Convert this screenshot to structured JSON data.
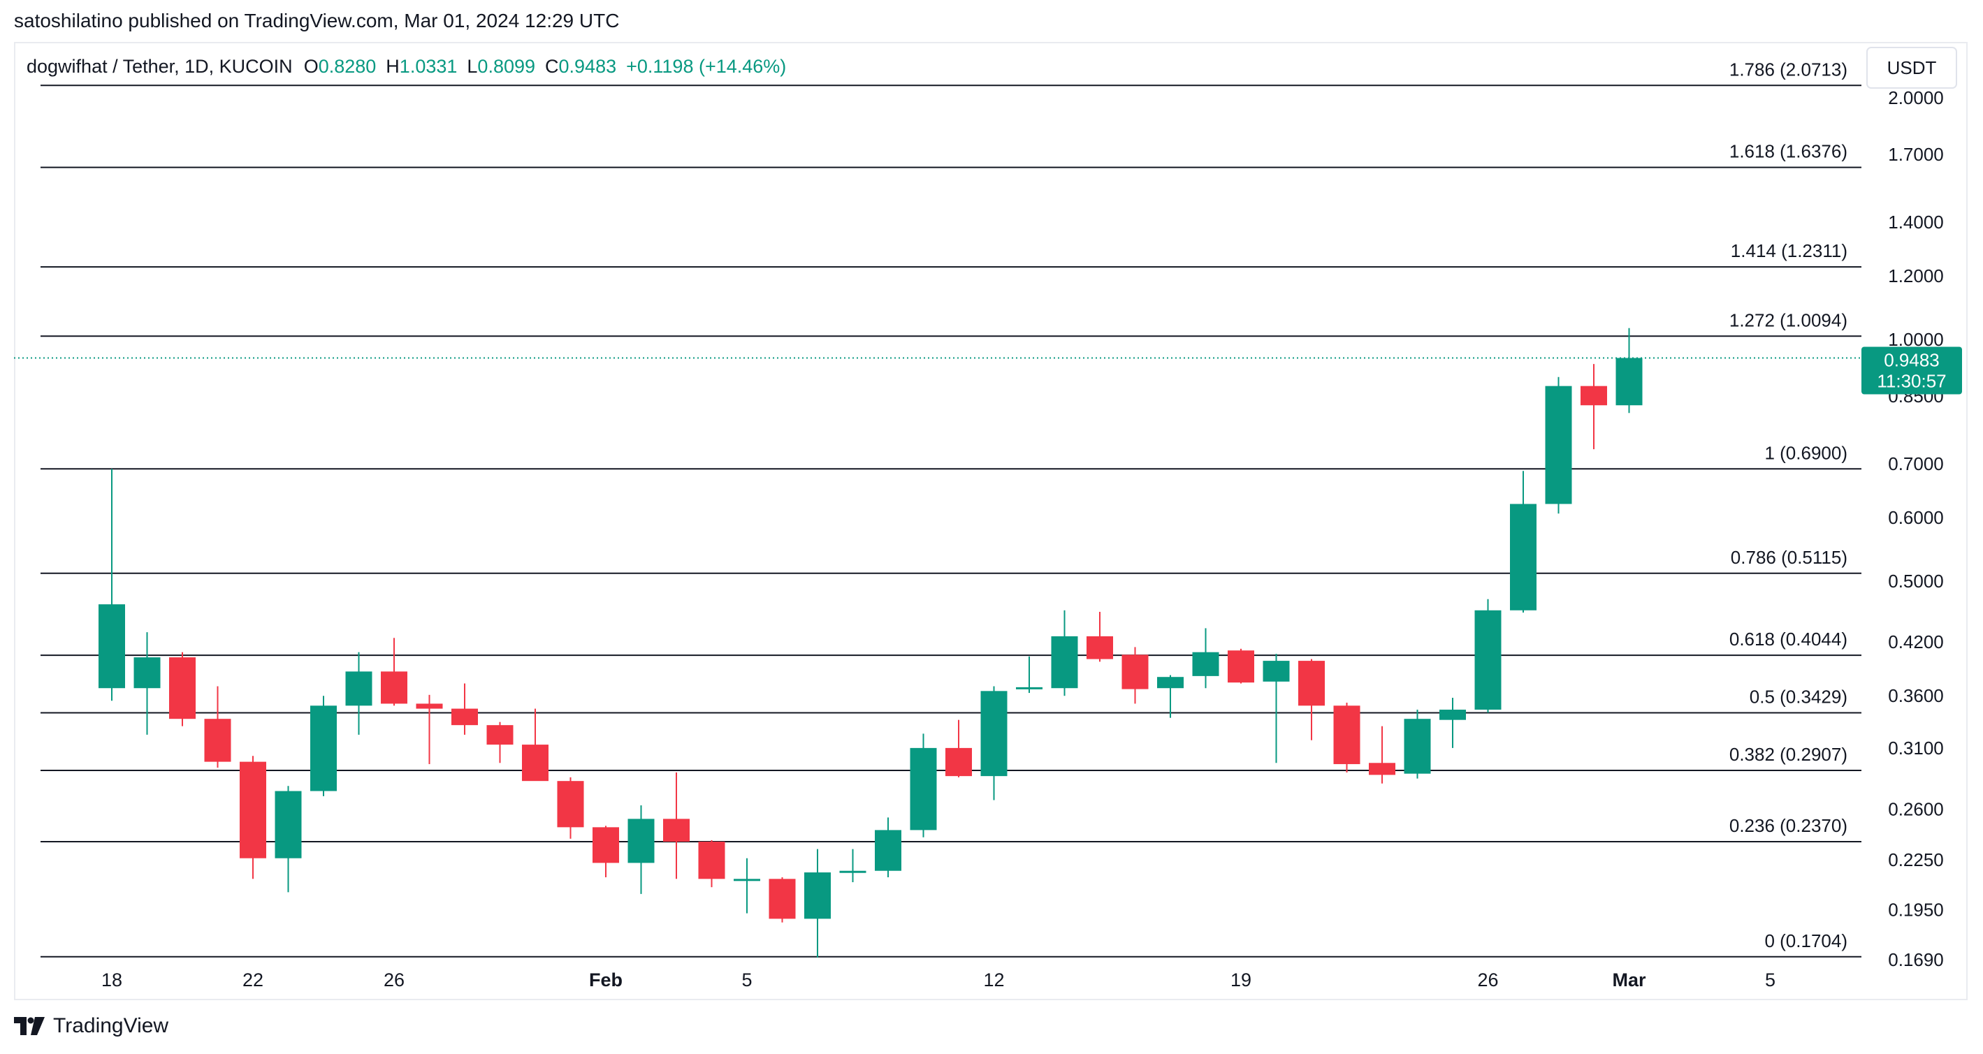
{
  "publisher_line": "satoshilatino published on TradingView.com, Mar 01, 2024 12:29 UTC",
  "footer_brand": "TradingView",
  "colors": {
    "up": "#089981",
    "down": "#f23645",
    "line": "#131722",
    "text": "#131722",
    "axis_text": "#131722",
    "grid_border": "#e0e3eb"
  },
  "chart_data": {
    "type": "candlestick",
    "title": "dogwifhat / Tether, 1D, KUCOIN",
    "ohlc_header": {
      "o_label": "O",
      "o_value": "0.8280",
      "h_label": "H",
      "h_value": "1.0331",
      "l_label": "L",
      "l_value": "0.8099",
      "c_label": "C",
      "c_value": "0.9483",
      "change": "+0.1198 (+14.46%)"
    },
    "currency": "USDT",
    "scale": "log",
    "y_range": [
      0.162,
      2.3
    ],
    "y_ticks": [
      {
        "label": "2.0000",
        "value": 2.0
      },
      {
        "label": "1.7000",
        "value": 1.7
      },
      {
        "label": "1.4000",
        "value": 1.4
      },
      {
        "label": "1.2000",
        "value": 1.2
      },
      {
        "label": "1.0000",
        "value": 1.0
      },
      {
        "label": "0.8500",
        "value": 0.85
      },
      {
        "label": "0.7000",
        "value": 0.7
      },
      {
        "label": "0.6000",
        "value": 0.6
      },
      {
        "label": "0.5000",
        "value": 0.5
      },
      {
        "label": "0.4200",
        "value": 0.42
      },
      {
        "label": "0.3600",
        "value": 0.36
      },
      {
        "label": "0.3100",
        "value": 0.31
      },
      {
        "label": "0.2600",
        "value": 0.26
      },
      {
        "label": "0.2250",
        "value": 0.225
      },
      {
        "label": "0.1950",
        "value": 0.195
      },
      {
        "label": "0.1690",
        "value": 0.169
      }
    ],
    "x_ticks": [
      {
        "label": "18",
        "index": 0,
        "bold": false
      },
      {
        "label": "22",
        "index": 4,
        "bold": false
      },
      {
        "label": "26",
        "index": 8,
        "bold": false
      },
      {
        "label": "Feb",
        "index": 14,
        "bold": true
      },
      {
        "label": "5",
        "index": 18,
        "bold": false
      },
      {
        "label": "12",
        "index": 25,
        "bold": false
      },
      {
        "label": "19",
        "index": 32,
        "bold": false
      },
      {
        "label": "26",
        "index": 39,
        "bold": false
      },
      {
        "label": "Mar",
        "index": 43,
        "bold": true
      },
      {
        "label": "5",
        "index": 47,
        "bold": false
      }
    ],
    "last_price": {
      "price": "0.9483",
      "countdown": "11:30:57",
      "value": 0.9483
    },
    "fib_levels": [
      {
        "label": "1.786 (2.0713)",
        "value": 2.0713
      },
      {
        "label": "1.618 (1.6376)",
        "value": 1.6376
      },
      {
        "label": "1.414 (1.2311)",
        "value": 1.2311
      },
      {
        "label": "1.272 (1.0094)",
        "value": 1.0094
      },
      {
        "label": "1 (0.6900)",
        "value": 0.69
      },
      {
        "label": "0.786 (0.5115)",
        "value": 0.5115
      },
      {
        "label": "0.618 (0.4044)",
        "value": 0.4044
      },
      {
        "label": "0.5 (0.3429)",
        "value": 0.3429
      },
      {
        "label": "0.382 (0.2907)",
        "value": 0.2907
      },
      {
        "label": "0.236 (0.2370)",
        "value": 0.237
      },
      {
        "label": "0 (0.1704)",
        "value": 0.1704
      }
    ],
    "candles": [
      {
        "date": "Jan 18",
        "o": 0.368,
        "h": 0.69,
        "l": 0.355,
        "c": 0.468
      },
      {
        "date": "Jan 19",
        "o": 0.368,
        "h": 0.432,
        "l": 0.322,
        "c": 0.402
      },
      {
        "date": "Jan 20",
        "o": 0.402,
        "h": 0.408,
        "l": 0.33,
        "c": 0.337
      },
      {
        "date": "Jan 21",
        "o": 0.337,
        "h": 0.37,
        "l": 0.293,
        "c": 0.298
      },
      {
        "date": "Jan 22",
        "o": 0.298,
        "h": 0.303,
        "l": 0.213,
        "c": 0.226
      },
      {
        "date": "Jan 23",
        "o": 0.226,
        "h": 0.278,
        "l": 0.205,
        "c": 0.274
      },
      {
        "date": "Jan 24",
        "o": 0.274,
        "h": 0.36,
        "l": 0.27,
        "c": 0.35
      },
      {
        "date": "Jan 25",
        "o": 0.35,
        "h": 0.408,
        "l": 0.322,
        "c": 0.386
      },
      {
        "date": "Jan 26",
        "o": 0.386,
        "h": 0.425,
        "l": 0.35,
        "c": 0.352
      },
      {
        "date": "Jan 27",
        "o": 0.352,
        "h": 0.361,
        "l": 0.296,
        "c": 0.347
      },
      {
        "date": "Jan 28",
        "o": 0.347,
        "h": 0.373,
        "l": 0.322,
        "c": 0.331
      },
      {
        "date": "Jan 29",
        "o": 0.331,
        "h": 0.334,
        "l": 0.297,
        "c": 0.313
      },
      {
        "date": "Jan 30",
        "o": 0.313,
        "h": 0.347,
        "l": 0.286,
        "c": 0.282
      },
      {
        "date": "Jan 31",
        "o": 0.282,
        "h": 0.285,
        "l": 0.239,
        "c": 0.247
      },
      {
        "date": "Feb 1",
        "o": 0.247,
        "h": 0.248,
        "l": 0.214,
        "c": 0.223
      },
      {
        "date": "Feb 2",
        "o": 0.223,
        "h": 0.263,
        "l": 0.204,
        "c": 0.253
      },
      {
        "date": "Feb 3",
        "o": 0.253,
        "h": 0.289,
        "l": 0.213,
        "c": 0.237
      },
      {
        "date": "Feb 4",
        "o": 0.237,
        "h": 0.238,
        "l": 0.208,
        "c": 0.213
      },
      {
        "date": "Feb 5",
        "o": 0.212,
        "h": 0.226,
        "l": 0.193,
        "c": 0.213
      },
      {
        "date": "Feb 6",
        "o": 0.213,
        "h": 0.214,
        "l": 0.188,
        "c": 0.19
      },
      {
        "date": "Feb 7",
        "o": 0.19,
        "h": 0.232,
        "l": 0.17,
        "c": 0.217
      },
      {
        "date": "Feb 8",
        "o": 0.217,
        "h": 0.232,
        "l": 0.211,
        "c": 0.218
      },
      {
        "date": "Feb 9",
        "o": 0.218,
        "h": 0.254,
        "l": 0.214,
        "c": 0.245
      },
      {
        "date": "Feb 10",
        "o": 0.245,
        "h": 0.323,
        "l": 0.24,
        "c": 0.31
      },
      {
        "date": "Feb 11",
        "o": 0.31,
        "h": 0.336,
        "l": 0.285,
        "c": 0.286
      },
      {
        "date": "Feb 12",
        "o": 0.286,
        "h": 0.37,
        "l": 0.267,
        "c": 0.365
      },
      {
        "date": "Feb 13",
        "o": 0.368,
        "h": 0.403,
        "l": 0.363,
        "c": 0.369
      },
      {
        "date": "Feb 14",
        "o": 0.368,
        "h": 0.46,
        "l": 0.36,
        "c": 0.427
      },
      {
        "date": "Feb 15",
        "o": 0.427,
        "h": 0.458,
        "l": 0.397,
        "c": 0.4
      },
      {
        "date": "Feb 16",
        "o": 0.405,
        "h": 0.414,
        "l": 0.352,
        "c": 0.367
      },
      {
        "date": "Feb 17",
        "o": 0.368,
        "h": 0.382,
        "l": 0.338,
        "c": 0.38
      },
      {
        "date": "Feb 18",
        "o": 0.381,
        "h": 0.437,
        "l": 0.368,
        "c": 0.408
      },
      {
        "date": "Feb 19",
        "o": 0.41,
        "h": 0.412,
        "l": 0.373,
        "c": 0.374
      },
      {
        "date": "Feb 20",
        "o": 0.375,
        "h": 0.406,
        "l": 0.297,
        "c": 0.398
      },
      {
        "date": "Feb 21",
        "o": 0.398,
        "h": 0.4,
        "l": 0.317,
        "c": 0.35
      },
      {
        "date": "Feb 22",
        "o": 0.35,
        "h": 0.353,
        "l": 0.289,
        "c": 0.296
      },
      {
        "date": "Feb 23",
        "o": 0.297,
        "h": 0.33,
        "l": 0.28,
        "c": 0.287
      },
      {
        "date": "Feb 24",
        "o": 0.288,
        "h": 0.346,
        "l": 0.284,
        "c": 0.337
      },
      {
        "date": "Feb 25",
        "o": 0.336,
        "h": 0.358,
        "l": 0.31,
        "c": 0.346
      },
      {
        "date": "Feb 26",
        "o": 0.346,
        "h": 0.475,
        "l": 0.343,
        "c": 0.46
      },
      {
        "date": "Feb 27",
        "o": 0.46,
        "h": 0.686,
        "l": 0.457,
        "c": 0.624
      },
      {
        "date": "Feb 28",
        "o": 0.624,
        "h": 0.898,
        "l": 0.607,
        "c": 0.875
      },
      {
        "date": "Feb 29",
        "o": 0.875,
        "h": 0.932,
        "l": 0.73,
        "c": 0.828
      },
      {
        "date": "Mar 1",
        "o": 0.828,
        "h": 1.0331,
        "l": 0.8099,
        "c": 0.9483
      }
    ]
  }
}
